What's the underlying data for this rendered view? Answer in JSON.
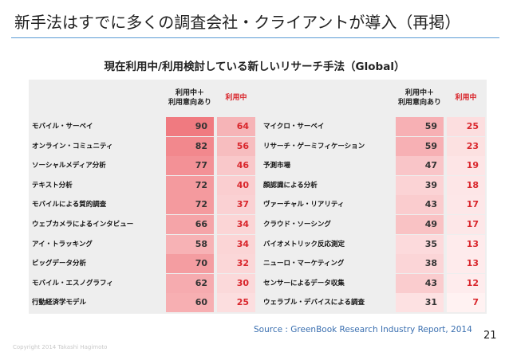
{
  "slide": {
    "title": "新手法はすでに多くの調査会社・クライアントが導入（再掲）",
    "subtitle": "現在利用中/利用検討している新しいリサーチ手法（Global）",
    "source": "Source : GreenBook Research Industry Report, 2014",
    "page_number": "21",
    "copyright": "Copyright 2014 Takashi Hagimoto",
    "accent_color": "#5a9bd5"
  },
  "table": {
    "header_both": "利用中＋\n利用意向あり",
    "header_use": "利用中",
    "colors": {
      "both_high": "#f07a80",
      "both_low": "#fde3e4",
      "use_high": "#f6b3b6",
      "use_low": "#fff4f4",
      "use_text": "#d9262c"
    },
    "left": [
      {
        "label": "モバイル・サーベイ",
        "both": 90,
        "use": 64
      },
      {
        "label": "オンライン・コミュニティ",
        "both": 82,
        "use": 56
      },
      {
        "label": "ソーシャルメディア分析",
        "both": 77,
        "use": 46
      },
      {
        "label": "テキスト分析",
        "both": 72,
        "use": 40
      },
      {
        "label": "モバイルによる質的調査",
        "both": 72,
        "use": 37
      },
      {
        "label": "ウェブカメラによるインタビュー",
        "both": 66,
        "use": 34
      },
      {
        "label": "アイ・トラッキング",
        "both": 58,
        "use": 34
      },
      {
        "label": "ビッグデータ分析",
        "both": 70,
        "use": 32
      },
      {
        "label": "モバイル・エスノグラフィ",
        "both": 62,
        "use": 30
      },
      {
        "label": "行動経済学モデル",
        "both": 60,
        "use": 25
      }
    ],
    "right": [
      {
        "label": "マイクロ・サーベイ",
        "both": 59,
        "use": 25
      },
      {
        "label": "リサーチ・ゲーミフィケーション",
        "both": 59,
        "use": 23
      },
      {
        "label": "予測市場",
        "both": 47,
        "use": 19
      },
      {
        "label": "顔認識による分析",
        "both": 39,
        "use": 18
      },
      {
        "label": "ヴァーチャル・リアリティ",
        "both": 43,
        "use": 17
      },
      {
        "label": "クラウド・ソーシング",
        "both": 49,
        "use": 17
      },
      {
        "label": "バイオメトリック反応測定",
        "both": 35,
        "use": 13
      },
      {
        "label": "ニューロ・マーケティング",
        "both": 38,
        "use": 13
      },
      {
        "label": "センサーによるデータ収集",
        "both": 43,
        "use": 12
      },
      {
        "label": "ウェラブル・デバイスによる調査",
        "both": 31,
        "use": 7
      }
    ]
  }
}
